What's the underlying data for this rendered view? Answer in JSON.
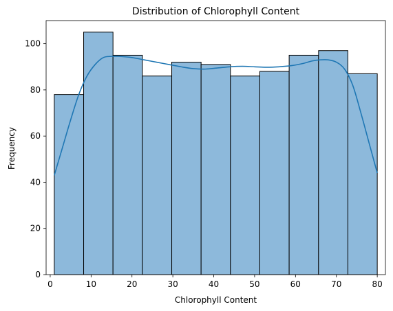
{
  "chart_data": {
    "type": "histogram",
    "title": "Distribution of Chlorophyll Content",
    "xlabel": "Chlorophyll Content",
    "ylabel": "Frequency",
    "xlim": [
      -1.0,
      82.0
    ],
    "ylim": [
      0,
      110
    ],
    "xticks": [
      0,
      10,
      20,
      30,
      40,
      50,
      60,
      70,
      80
    ],
    "yticks": [
      0,
      20,
      40,
      60,
      80,
      100
    ],
    "bin_edges": [
      1.0,
      8.18,
      15.36,
      22.55,
      29.73,
      36.91,
      44.09,
      51.27,
      58.45,
      65.64,
      72.82,
      80.0
    ],
    "counts": [
      78,
      105,
      95,
      86,
      92,
      91,
      86,
      88,
      95,
      97,
      87
    ],
    "kde": {
      "x": [
        1,
        3,
        5,
        7,
        9,
        11,
        13,
        15,
        17,
        20,
        23,
        26,
        29,
        32,
        35,
        38,
        41,
        44,
        47,
        50,
        53,
        56,
        59,
        62,
        64,
        66,
        68,
        70,
        72,
        74,
        76,
        78,
        80
      ],
      "y": [
        43,
        55,
        67,
        78,
        86,
        91,
        94,
        94.5,
        94.5,
        94,
        93,
        92,
        91,
        90,
        89.2,
        89,
        89.5,
        90,
        90.2,
        90,
        89.8,
        90,
        90.5,
        91.5,
        92.5,
        93,
        93,
        92,
        89,
        82,
        70,
        57,
        44
      ]
    },
    "bar_color": "#8db9db",
    "bar_edge_color": "#000000",
    "kde_color": "#1f77b4",
    "grid": false
  }
}
